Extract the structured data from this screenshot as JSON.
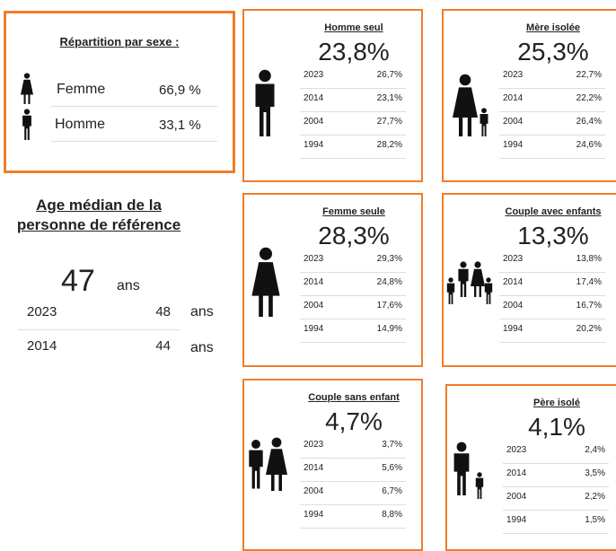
{
  "sex_box": {
    "title": "Répartition par sexe :",
    "rows": [
      {
        "label": "Femme",
        "value": "66,9 %"
      },
      {
        "label": "Homme",
        "value": "33,1 %"
      }
    ]
  },
  "median_age": {
    "title_line1": "Age médian de la",
    "title_line2": "personne de référence",
    "value": "47",
    "unit": "ans",
    "rows": [
      {
        "year": "2023",
        "value": "48",
        "unit": "ans"
      },
      {
        "year": "2014",
        "value": "44",
        "unit": "ans"
      }
    ]
  },
  "cards": [
    {
      "title": "Homme seul",
      "value": "23,8%",
      "rows": [
        {
          "year": "2023",
          "value": "26,7%"
        },
        {
          "year": "2014",
          "value": "23,1%"
        },
        {
          "year": "2004",
          "value": "27,7%"
        },
        {
          "year": "1994",
          "value": "28,2%"
        }
      ]
    },
    {
      "title": "Mère isolée",
      "value": "25,3%",
      "rows": [
        {
          "year": "2023",
          "value": "22,7%"
        },
        {
          "year": "2014",
          "value": "22,2%"
        },
        {
          "year": "2004",
          "value": "26,4%"
        },
        {
          "year": "1994",
          "value": "24,6%"
        }
      ]
    },
    {
      "title": "Femme seule",
      "value": "28,3%",
      "rows": [
        {
          "year": "2023",
          "value": "29,3%"
        },
        {
          "year": "2014",
          "value": "24,8%"
        },
        {
          "year": "2004",
          "value": "17,6%"
        },
        {
          "year": "1994",
          "value": "14,9%"
        }
      ]
    },
    {
      "title": "Couple avec enfants",
      "value": "13,3%",
      "rows": [
        {
          "year": "2023",
          "value": "13,8%"
        },
        {
          "year": "2014",
          "value": "17,4%"
        },
        {
          "year": "2004",
          "value": "16,7%"
        },
        {
          "year": "1994",
          "value": "20,2%"
        }
      ]
    },
    {
      "title": "Couple sans enfant",
      "value": "4,7%",
      "rows": [
        {
          "year": "2023",
          "value": "3,7%"
        },
        {
          "year": "2014",
          "value": "5,6%"
        },
        {
          "year": "2004",
          "value": "6,7%"
        },
        {
          "year": "1994",
          "value": "8,8%"
        }
      ]
    },
    {
      "title": "Père isolé",
      "value": "4,1%",
      "rows": [
        {
          "year": "2023",
          "value": "2,4%"
        },
        {
          "year": "2014",
          "value": "3,5%"
        },
        {
          "year": "2004",
          "value": "2,2%"
        },
        {
          "year": "1994",
          "value": "1,5%"
        }
      ]
    }
  ]
}
